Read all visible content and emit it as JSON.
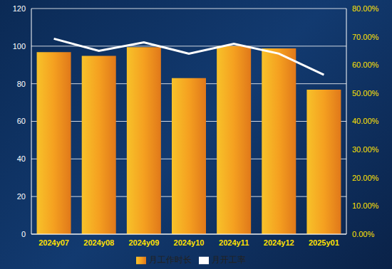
{
  "chart_data": {
    "type": "bar",
    "categories": [
      "2024y07",
      "2024y08",
      "2024y09",
      "2024y10",
      "2024y11",
      "2024y12",
      "2025y01"
    ],
    "series": [
      {
        "name": "月工作时长",
        "type": "bar",
        "color": "#f5a020",
        "values": [
          96.8,
          94.8,
          99.5,
          83,
          100,
          98.8,
          76.8
        ]
      },
      {
        "name": "月开工率",
        "type": "line",
        "color": "#ffffff",
        "axis": "y2",
        "values": [
          69.3,
          65,
          68,
          64,
          67.5,
          64,
          56.5
        ]
      }
    ],
    "ylim": [
      0,
      120
    ],
    "yticks": [
      0,
      20,
      40,
      60,
      80,
      100,
      120
    ],
    "y2lim": [
      0,
      80
    ],
    "y2ticks": [
      {
        "value": 0,
        "label": "0.00%"
      },
      {
        "value": 10,
        "label": "10.00%"
      },
      {
        "value": 20,
        "label": "20.00%"
      },
      {
        "value": 30,
        "label": "30.00%"
      },
      {
        "value": 40,
        "label": "40.00%"
      },
      {
        "value": 50,
        "label": "50.00%"
      },
      {
        "value": 60,
        "label": "60.00%"
      },
      {
        "value": 70,
        "label": "70.00%"
      },
      {
        "value": 80,
        "label": "80.00%"
      }
    ],
    "grid": true,
    "legend": "bottom"
  }
}
